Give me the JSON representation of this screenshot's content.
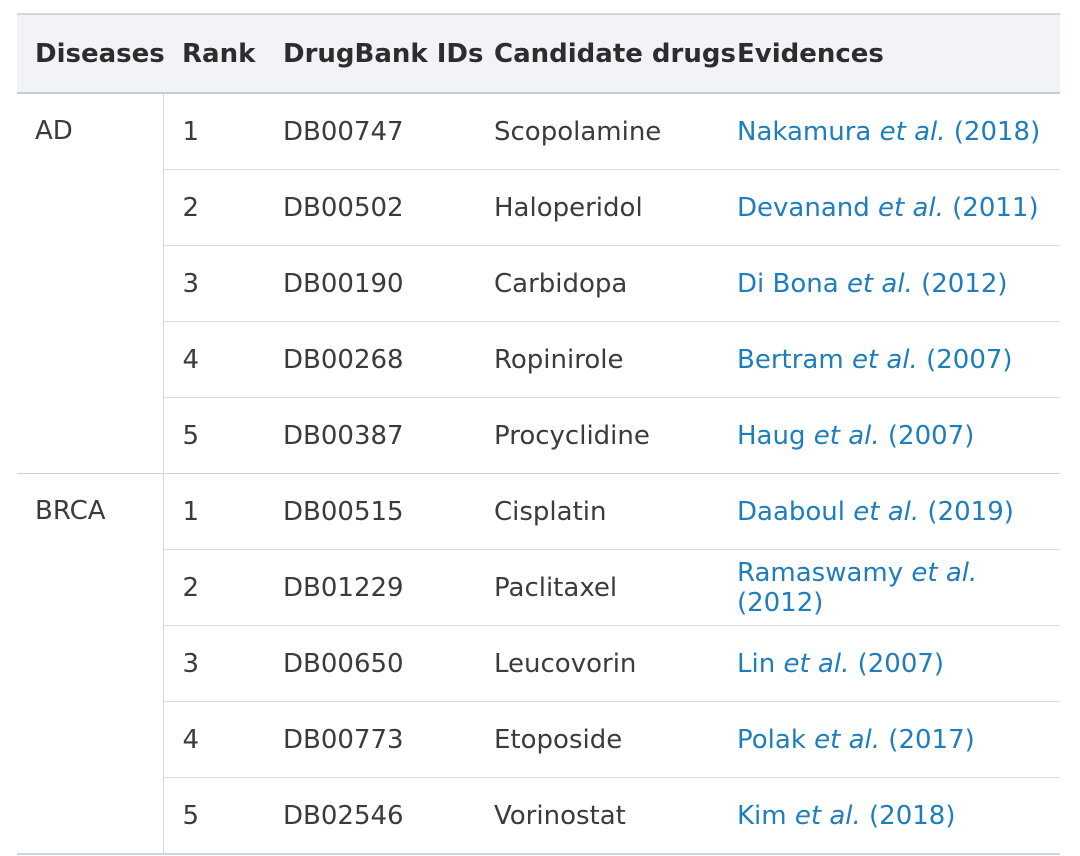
{
  "table": {
    "columns": [
      "Diseases",
      "Rank",
      "DrugBank IDs",
      "Candidate drugs",
      "Evidences"
    ],
    "groups": [
      {
        "disease": "AD",
        "rows": [
          {
            "rank": "1",
            "drugbank_id": "DB00747",
            "drug": "Scopolamine",
            "evidence": {
              "author": "Nakamura",
              "etal": "et al.",
              "year": "(2018)"
            }
          },
          {
            "rank": "2",
            "drugbank_id": "DB00502",
            "drug": "Haloperidol",
            "evidence": {
              "author": "Devanand",
              "etal": "et al.",
              "year": "(2011)"
            }
          },
          {
            "rank": "3",
            "drugbank_id": "DB00190",
            "drug": "Carbidopa",
            "evidence": {
              "author": "Di Bona",
              "etal": "et al.",
              "year": "(2012)"
            }
          },
          {
            "rank": "4",
            "drugbank_id": "DB00268",
            "drug": "Ropinirole",
            "evidence": {
              "author": "Bertram",
              "etal": "et al.",
              "year": "(2007)"
            }
          },
          {
            "rank": "5",
            "drugbank_id": "DB00387",
            "drug": "Procyclidine",
            "evidence": {
              "author": "Haug",
              "etal": "et al.",
              "year": "(2007)"
            }
          }
        ]
      },
      {
        "disease": "BRCA",
        "rows": [
          {
            "rank": "1",
            "drugbank_id": "DB00515",
            "drug": "Cisplatin",
            "evidence": {
              "author": "Daaboul",
              "etal": "et al.",
              "year": "(2019)"
            }
          },
          {
            "rank": "2",
            "drugbank_id": "DB01229",
            "drug": "Paclitaxel",
            "evidence": {
              "author": "Ramaswamy",
              "etal": "et al.",
              "year": "(2012)"
            }
          },
          {
            "rank": "3",
            "drugbank_id": "DB00650",
            "drug": "Leucovorin",
            "evidence": {
              "author": "Lin",
              "etal": "et al.",
              "year": "(2007)"
            }
          },
          {
            "rank": "4",
            "drugbank_id": "DB00773",
            "drug": "Etoposide",
            "evidence": {
              "author": "Polak",
              "etal": "et al.",
              "year": "(2017)"
            }
          },
          {
            "rank": "5",
            "drugbank_id": "DB02546",
            "drug": "Vorinostat",
            "evidence": {
              "author": "Kim",
              "etal": "et al.",
              "year": "(2018)"
            }
          }
        ]
      }
    ]
  },
  "colors": {
    "link_blue": "#1e7ebd",
    "header_bg": "#f1f3f7",
    "header_text": "#2d2d2d",
    "body_text": "#3b3b3b",
    "border_light": "#dbdde1",
    "border_dark": "#c9ccd3"
  }
}
